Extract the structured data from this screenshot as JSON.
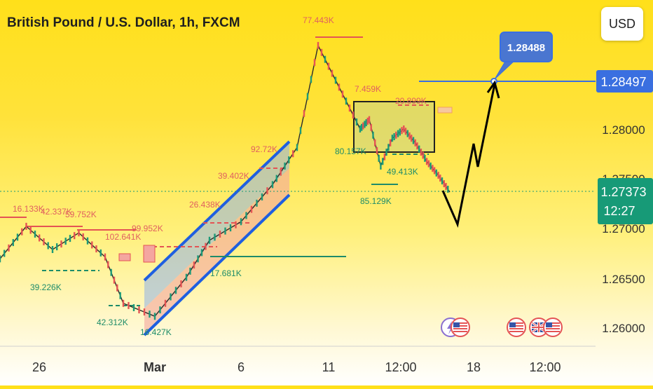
{
  "header": {
    "title": "British Pound / U.S. Dollar, 1h, FXCM"
  },
  "currency_button": {
    "label": "USD"
  },
  "chart_data": {
    "type": "line",
    "title": "British Pound / U.S. Dollar, 1h, FXCM",
    "x_ticks": [
      "26",
      "Mar",
      "6",
      "11",
      "12:00",
      "18",
      "12:00"
    ],
    "y_ticks": [
      "1.26000",
      "1.26500",
      "1.27000",
      "1.27500",
      "1.28000"
    ],
    "ylim": [
      1.2575,
      1.2915
    ],
    "price_labels": {
      "target_line": "1.28497",
      "current_price": "1.27373",
      "countdown": "12:27"
    },
    "target_callout": "1.28488",
    "price_path": [
      [
        "26",
        1.267
      ],
      [
        "26",
        1.2705
      ],
      [
        "26",
        1.268
      ],
      [
        "26",
        1.2698
      ],
      [
        "26",
        1.2672
      ],
      [
        "Mar",
        1.2622
      ],
      [
        "Mar",
        1.2608
      ],
      [
        "Mar",
        1.265
      ],
      [
        "6",
        1.269
      ],
      [
        "6",
        1.271
      ],
      [
        "6",
        1.275
      ],
      [
        "11",
        1.279
      ],
      [
        "11",
        1.29
      ],
      [
        "11",
        1.2855
      ],
      [
        "11",
        1.281
      ],
      [
        "12:00",
        1.282
      ],
      [
        "12:00",
        1.277
      ],
      [
        "12:00",
        1.28
      ],
      [
        "12:00",
        1.281
      ],
      [
        "12:00",
        1.2795
      ],
      [
        "12:00",
        1.2775
      ],
      [
        "12:00",
        1.276
      ],
      [
        "12:00",
        1.2742
      ]
    ],
    "projection_path": [
      1.2737,
      1.2705,
      1.279,
      1.2765,
      1.2849
    ],
    "volume_labels": [
      {
        "text": "16.133K",
        "color": "#e06060"
      },
      {
        "text": "42.337K",
        "color": "#e06060"
      },
      {
        "text": "59.752K",
        "color": "#e06060"
      },
      {
        "text": "39.226K",
        "color": "#1e8c6a"
      },
      {
        "text": "102.641K",
        "color": "#e06060"
      },
      {
        "text": "99.952K",
        "color": "#e06060"
      },
      {
        "text": "42.312K",
        "color": "#1e8c6a"
      },
      {
        "text": "16.427K",
        "color": "#1e8c6a"
      },
      {
        "text": "26.438K",
        "color": "#e06060"
      },
      {
        "text": "39.402K",
        "color": "#e06060"
      },
      {
        "text": "17.681K",
        "color": "#1e8c6a"
      },
      {
        "text": "92.72K",
        "color": "#e06060"
      },
      {
        "text": "77.443K",
        "color": "#e06060"
      },
      {
        "text": "7.459K",
        "color": "#e06060"
      },
      {
        "text": "20.899K",
        "color": "#e06060"
      },
      {
        "text": "80.157K",
        "color": "#1e8c6a"
      },
      {
        "text": "49.413K",
        "color": "#1e8c6a"
      },
      {
        "text": "85.129K",
        "color": "#1e8c6a"
      }
    ],
    "event_flags": [
      "flash-us-flag-icon",
      "us-flag-icon",
      "us-flag-icon",
      "uk-flag-icon",
      "us-flag-icon"
    ],
    "colors": {
      "up": "#1e9a78",
      "down": "#e45454",
      "channel_border": "#1f5fe0",
      "target": "#3a6fe0",
      "current_price_bg": "#179a77"
    }
  }
}
